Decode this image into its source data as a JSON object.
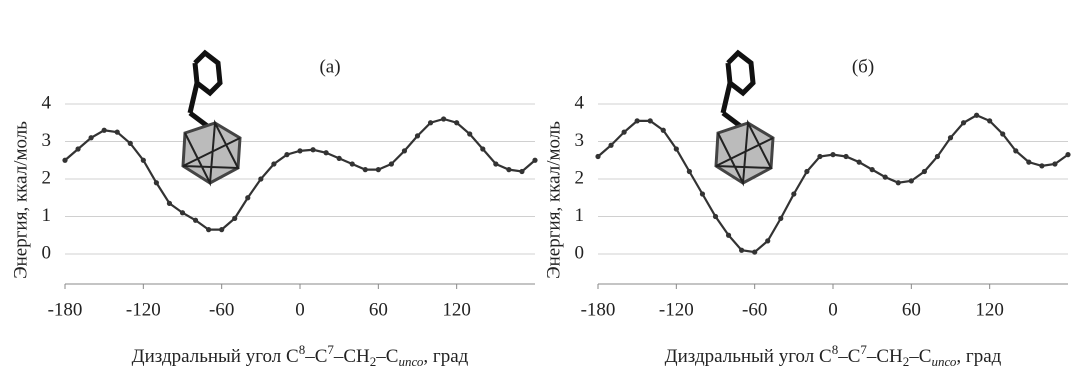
{
  "chart_data": [
    {
      "type": "line",
      "title": "(а)",
      "y_label": "Энергия, ккал/моль",
      "x_label": [
        "Диздральный угол C",
        "8",
        "–C",
        "7",
        "–CH",
        "2",
        "–C",
        "ипсо",
        ", град"
      ],
      "x": [
        -180,
        -170,
        -160,
        -150,
        -140,
        -130,
        -120,
        -110,
        -100,
        -90,
        -80,
        -70,
        -60,
        -50,
        -40,
        -30,
        -20,
        -10,
        0,
        10,
        20,
        30,
        40,
        50,
        60,
        70,
        80,
        90,
        100,
        110,
        120,
        130,
        140,
        150,
        160,
        170,
        180
      ],
      "values": [
        2.5,
        2.8,
        3.1,
        3.3,
        3.25,
        2.95,
        2.5,
        1.9,
        1.35,
        1.1,
        0.9,
        0.65,
        0.65,
        0.95,
        1.5,
        2.0,
        2.4,
        2.65,
        2.75,
        2.78,
        2.7,
        2.55,
        2.4,
        2.25,
        2.25,
        2.4,
        2.75,
        3.15,
        3.5,
        3.6,
        3.5,
        3.2,
        2.8,
        2.4,
        2.25,
        2.2,
        2.5
      ],
      "color": "#333333",
      "xlim": [
        -180,
        180
      ],
      "xticks": [
        -180,
        -120,
        -60,
        0,
        60,
        120
      ],
      "ylim": [
        -0.8,
        4
      ],
      "yticks": [
        0,
        1,
        2,
        3,
        4
      ],
      "grid": true
    },
    {
      "type": "line",
      "title": "(б)",
      "y_label": "Энергия, ккал/моль",
      "x_label": [
        "Диздральный угол C",
        "8",
        "–C",
        "7",
        "–CH",
        "2",
        "–C",
        "ипсо",
        ", град"
      ],
      "x": [
        -180,
        -170,
        -160,
        -150,
        -140,
        -130,
        -120,
        -110,
        -100,
        -90,
        -80,
        -70,
        -60,
        -50,
        -40,
        -30,
        -20,
        -10,
        0,
        10,
        20,
        30,
        40,
        50,
        60,
        70,
        80,
        90,
        100,
        110,
        120,
        130,
        140,
        150,
        160,
        170,
        180
      ],
      "values": [
        2.6,
        2.9,
        3.25,
        3.55,
        3.55,
        3.3,
        2.8,
        2.2,
        1.6,
        1.0,
        0.5,
        0.1,
        0.05,
        0.35,
        0.95,
        1.6,
        2.2,
        2.6,
        2.65,
        2.6,
        2.45,
        2.25,
        2.05,
        1.9,
        1.95,
        2.2,
        2.6,
        3.1,
        3.5,
        3.7,
        3.55,
        3.2,
        2.75,
        2.45,
        2.35,
        2.4,
        2.65
      ],
      "color": "#333333",
      "xlim": [
        -180,
        180
      ],
      "xticks": [
        -180,
        -120,
        -60,
        0,
        60,
        120
      ],
      "ylim": [
        -0.8,
        4
      ],
      "yticks": [
        0,
        1,
        2,
        3,
        4
      ],
      "grid": true
    }
  ]
}
